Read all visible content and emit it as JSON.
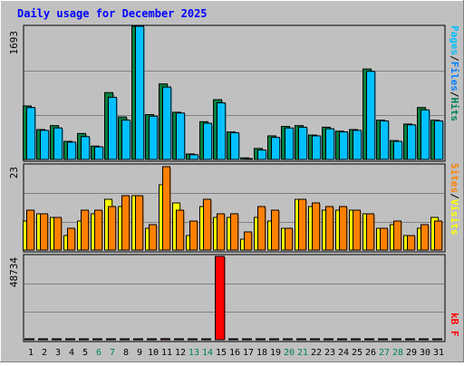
{
  "chart_data": [
    {
      "type": "bar",
      "title": "Daily usage for December 2025",
      "panel": "hits-files-pages",
      "y_max_label": "1693",
      "ylim": [
        0,
        1693
      ],
      "legend": [
        "Pages",
        "Files",
        "Hits"
      ],
      "categories": [
        "1",
        "2",
        "3",
        "4",
        "5",
        "6",
        "7",
        "8",
        "9",
        "10",
        "11",
        "12",
        "13",
        "14",
        "15",
        "16",
        "17",
        "18",
        "19",
        "20",
        "21",
        "22",
        "23",
        "24",
        "25",
        "26",
        "27",
        "28",
        "29",
        "30",
        "31"
      ],
      "weekend_days": [
        "6",
        "7",
        "13",
        "14",
        "20",
        "21",
        "27",
        "28"
      ],
      "series": [
        {
          "name": "Hits",
          "color": "#008040",
          "values": [
            680,
            380,
            430,
            230,
            330,
            170,
            850,
            540,
            1693,
            570,
            960,
            600,
            70,
            480,
            760,
            350,
            20,
            140,
            300,
            420,
            430,
            310,
            410,
            360,
            380,
            1150,
            500,
            240,
            450,
            660,
            500
          ]
        },
        {
          "name": "Files",
          "color": "#00c0ff",
          "values": [
            660,
            370,
            400,
            220,
            290,
            160,
            790,
            500,
            1693,
            550,
            920,
            590,
            60,
            460,
            720,
            340,
            10,
            120,
            280,
            400,
            410,
            300,
            390,
            350,
            370,
            1120,
            490,
            230,
            440,
            630,
            490
          ]
        },
        {
          "name": "Pages",
          "color": "#00c0ff",
          "values": [
            0,
            0,
            0,
            0,
            0,
            0,
            0,
            0,
            0,
            0,
            0,
            0,
            0,
            0,
            0,
            0,
            0,
            0,
            0,
            0,
            0,
            0,
            0,
            0,
            0,
            0,
            0,
            0,
            0,
            0,
            0
          ]
        }
      ]
    },
    {
      "type": "bar",
      "panel": "visits-sites",
      "y_max_label": "23",
      "ylim": [
        0,
        23
      ],
      "legend": [
        "Sites",
        "Visits"
      ],
      "categories": [
        "1",
        "2",
        "3",
        "4",
        "5",
        "6",
        "7",
        "8",
        "9",
        "10",
        "11",
        "12",
        "13",
        "14",
        "15",
        "16",
        "17",
        "18",
        "19",
        "20",
        "21",
        "22",
        "23",
        "24",
        "25",
        "26",
        "27",
        "28",
        "29",
        "30",
        "31"
      ],
      "series": [
        {
          "name": "Visits",
          "color": "#ffff00",
          "values": [
            8,
            10,
            9,
            4,
            8,
            10,
            14,
            12,
            15,
            6,
            18,
            13,
            4,
            12,
            9,
            9,
            3,
            9,
            8,
            6,
            14,
            12,
            11,
            11,
            11,
            10,
            6,
            7,
            4,
            6,
            9
          ]
        },
        {
          "name": "Sites",
          "color": "#ff8000",
          "values": [
            11,
            10,
            9,
            6,
            11,
            11,
            12,
            15,
            15,
            7,
            23,
            11,
            8,
            14,
            10,
            10,
            5,
            12,
            11,
            6,
            14,
            13,
            12,
            12,
            11,
            10,
            6,
            8,
            4,
            7,
            8
          ]
        }
      ]
    },
    {
      "type": "bar",
      "panel": "kbytes",
      "y_max_label": "48734",
      "ylim": [
        0,
        48734
      ],
      "legend": [
        "kB F"
      ],
      "categories": [
        "1",
        "2",
        "3",
        "4",
        "5",
        "6",
        "7",
        "8",
        "9",
        "10",
        "11",
        "12",
        "13",
        "14",
        "15",
        "16",
        "17",
        "18",
        "19",
        "20",
        "21",
        "22",
        "23",
        "24",
        "25",
        "26",
        "27",
        "28",
        "29",
        "30",
        "31"
      ],
      "series": [
        {
          "name": "kB F",
          "color": "#ff0000",
          "values": [
            40,
            40,
            40,
            40,
            40,
            40,
            40,
            40,
            400,
            100,
            600,
            40,
            40,
            40,
            48734,
            40,
            40,
            40,
            40,
            40,
            200,
            40,
            300,
            40,
            40,
            400,
            40,
            40,
            40,
            40,
            40
          ]
        }
      ]
    }
  ],
  "colors": {
    "background": "#c0c0c0",
    "frame_light": "#ffffff",
    "frame_dark": "#808080",
    "title": "#0000ff",
    "weekday_label": "#000000",
    "weekend_label": "#00805c",
    "legend_pages": "#00c0ff",
    "legend_files": "#0080ff",
    "legend_hits": "#00805c",
    "legend_sites": "#ff8000",
    "legend_visits": "#ffff00",
    "legend_kb": "#ff0000",
    "legend_sep": "#000000"
  }
}
